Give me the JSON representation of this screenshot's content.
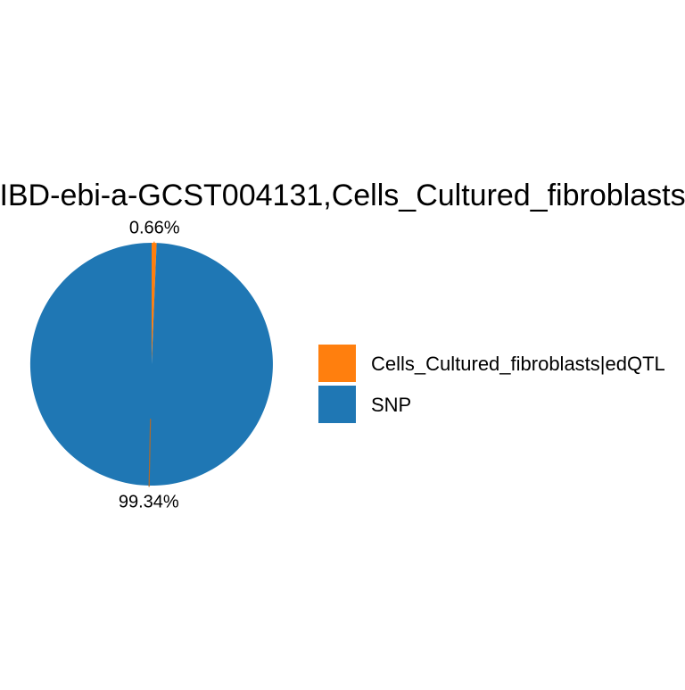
{
  "chart_data": {
    "type": "pie",
    "title": "IBD-ebi-a-GCST004131,Cells_Cultured_fibroblasts",
    "slices": [
      {
        "label": "Cells_Cultured_fibroblasts|edQTL",
        "value": 0.66,
        "display": "0.66%",
        "color": "#ff7f0e"
      },
      {
        "label": "SNP",
        "value": 99.34,
        "display": "99.34%",
        "color": "#1f77b4"
      }
    ],
    "legend_position": "right",
    "show_grid": false
  }
}
